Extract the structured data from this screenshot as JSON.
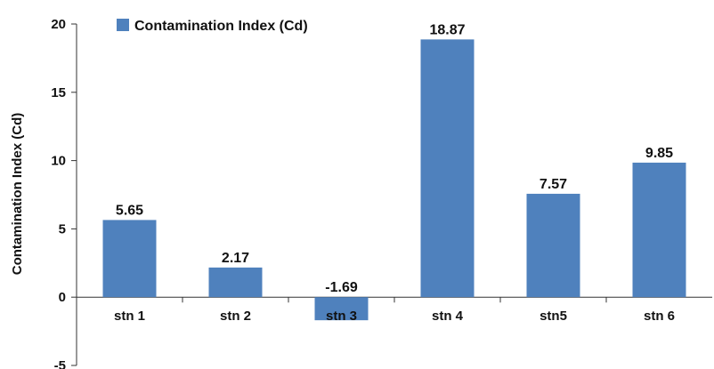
{
  "chart_data": {
    "type": "bar",
    "categories": [
      "stn 1",
      "stn 2",
      "stn 3",
      "stn 4",
      "stn5",
      "stn 6"
    ],
    "series": [
      {
        "name": "Contamination Index (Cd)",
        "values": [
          5.65,
          2.17,
          -1.69,
          18.87,
          7.57,
          9.85
        ],
        "color": "#4f81bd"
      }
    ],
    "data_labels": [
      "5.65",
      "2.17",
      "-1.69",
      "18.87",
      "7.57",
      "9.85"
    ],
    "ylabel": "Contamination Index (Cd)",
    "xlabel": "",
    "ylim": [
      -5,
      20
    ],
    "yticks": [
      -5,
      0,
      5,
      10,
      15,
      20
    ],
    "legend": {
      "label": "Contamination Index (Cd)",
      "placement": "top-left"
    },
    "grid": false
  }
}
